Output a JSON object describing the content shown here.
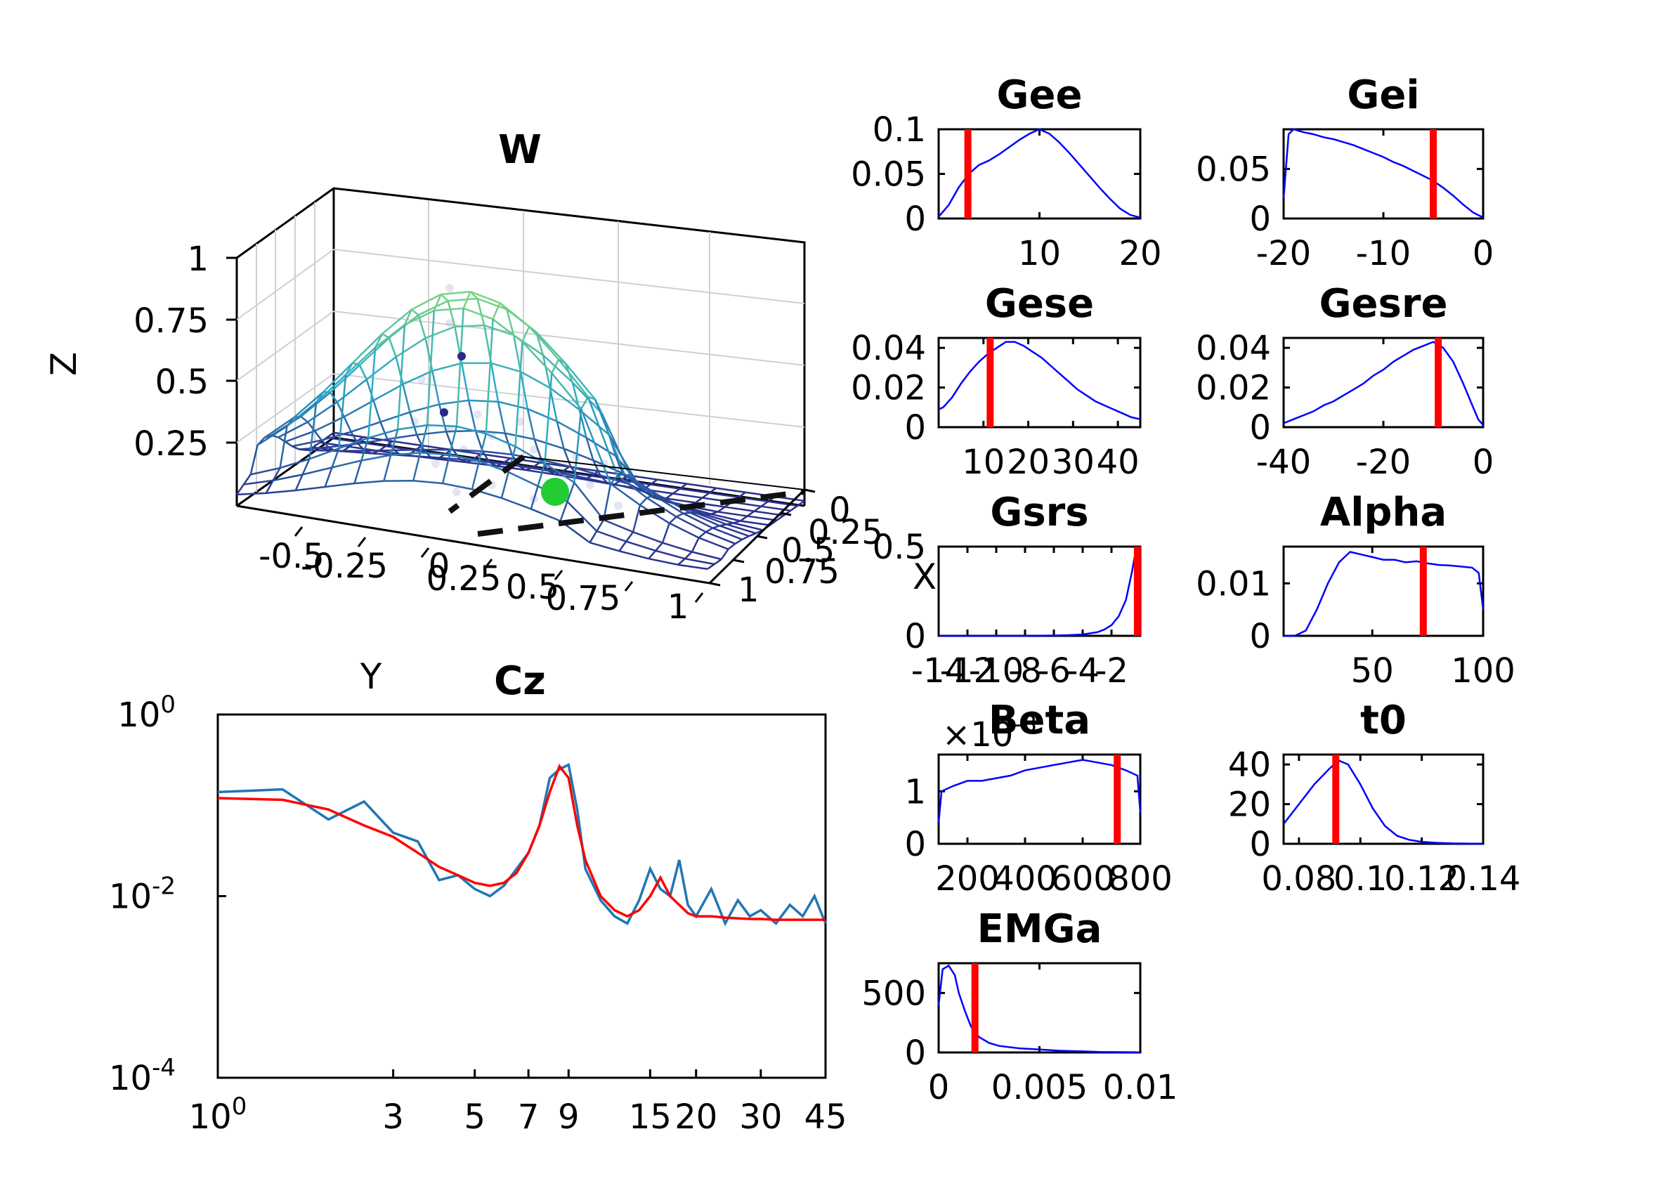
{
  "colors": {
    "spectrum_data": "#1f77b4",
    "spectrum_fit": "#ff0000",
    "hist_line": "#0000ff",
    "marker": "#ff0000",
    "point": "#22cc33",
    "mesh_high": "#7fd67f",
    "mesh_low": "#2a2a8a"
  },
  "chart_data": [
    {
      "id": "w",
      "type": "surface",
      "title": "W",
      "zlabel": "Z",
      "xlabel": "X",
      "ylabel": "Y",
      "z_ticks": [
        "1",
        "0.75",
        "0.5",
        "0.25"
      ],
      "y_ticks": [
        "-0.5",
        "-0.25",
        "0",
        "0.25",
        "0.5",
        "0.75",
        "1"
      ],
      "x_ticks": [
        "0",
        "0.25",
        "0.5",
        "0.75",
        "1"
      ],
      "zlim": [
        0,
        1
      ],
      "peak": {
        "x": 0.45,
        "y": 0.1,
        "z": 0.9
      },
      "highlight_point": {
        "x": 0.8,
        "y": 0.2,
        "z": 0
      }
    },
    {
      "id": "cz",
      "type": "line",
      "title": "Cz",
      "x_scale": "log",
      "y_scale": "log",
      "xlim": [
        1,
        45
      ],
      "ylim": [
        0.0001,
        1
      ],
      "x_ticks": [
        {
          "value": 1,
          "label": "10",
          "exp": "0"
        },
        {
          "value": 3,
          "label": "3"
        },
        {
          "value": 5,
          "label": "5"
        },
        {
          "value": 7,
          "label": "7"
        },
        {
          "value": 9,
          "label": "9"
        },
        {
          "value": 15,
          "label": "15"
        },
        {
          "value": 20,
          "label": "20"
        },
        {
          "value": 30,
          "label": "30"
        },
        {
          "value": 45,
          "label": "45"
        }
      ],
      "y_ticks": [
        {
          "value": 1,
          "label": "10",
          "exp": "0"
        },
        {
          "value": 0.01,
          "label": "10",
          "exp": "-2"
        },
        {
          "value": 0.0001,
          "label": "10",
          "exp": "-4"
        }
      ],
      "series": [
        {
          "role": "data",
          "x": [
            1,
            1.5,
            2,
            2.5,
            3,
            3.5,
            4,
            4.5,
            5,
            5.5,
            6,
            6.5,
            7,
            7.5,
            8,
            8.5,
            9,
            9.5,
            10,
            11,
            12,
            13,
            14,
            15,
            16,
            17,
            18,
            19,
            20,
            22,
            24,
            26,
            28,
            30,
            33,
            36,
            39,
            42,
            45
          ],
          "y": [
            0.14,
            0.15,
            0.07,
            0.11,
            0.05,
            0.04,
            0.015,
            0.017,
            0.012,
            0.01,
            0.013,
            0.02,
            0.03,
            0.06,
            0.2,
            0.25,
            0.28,
            0.09,
            0.02,
            0.009,
            0.006,
            0.005,
            0.009,
            0.02,
            0.012,
            0.01,
            0.025,
            0.008,
            0.006,
            0.012,
            0.005,
            0.009,
            0.006,
            0.007,
            0.005,
            0.008,
            0.006,
            0.01,
            0.005
          ]
        },
        {
          "role": "fit",
          "x": [
            1,
            1.5,
            2,
            2.5,
            3,
            3.5,
            4,
            4.5,
            5,
            5.5,
            6,
            6.5,
            7,
            7.5,
            8,
            8.5,
            9,
            9.5,
            10,
            11,
            12,
            13,
            14,
            15,
            16,
            17,
            18,
            19,
            20,
            22,
            24,
            26,
            28,
            30,
            33,
            36,
            39,
            42,
            45
          ],
          "y": [
            0.12,
            0.115,
            0.09,
            0.06,
            0.045,
            0.03,
            0.021,
            0.017,
            0.014,
            0.013,
            0.014,
            0.018,
            0.03,
            0.06,
            0.14,
            0.27,
            0.2,
            0.06,
            0.025,
            0.01,
            0.007,
            0.006,
            0.007,
            0.01,
            0.016,
            0.01,
            0.008,
            0.0065,
            0.006,
            0.006,
            0.0058,
            0.0057,
            0.0056,
            0.0056,
            0.0055,
            0.0055,
            0.0055,
            0.0055,
            0.0055
          ]
        }
      ]
    },
    {
      "id": "gee",
      "type": "line",
      "title": "Gee",
      "xlim": [
        0,
        20
      ],
      "ylim": [
        0,
        0.1
      ],
      "x_ticks": [
        {
          "v": 10,
          "t": "10"
        },
        {
          "v": 20,
          "t": "20"
        }
      ],
      "y_ticks": [
        {
          "v": 0,
          "t": "0"
        },
        {
          "v": 0.05,
          "t": "0.05"
        },
        {
          "v": 0.1,
          "t": "0.1"
        }
      ],
      "marker": 2.9,
      "x": [
        0,
        1,
        2,
        3,
        4,
        5,
        6,
        7,
        8,
        9,
        10,
        11,
        12,
        13,
        14,
        15,
        16,
        17,
        18,
        19,
        20
      ],
      "y": [
        0.002,
        0.015,
        0.035,
        0.05,
        0.06,
        0.065,
        0.072,
        0.08,
        0.088,
        0.095,
        0.1,
        0.095,
        0.085,
        0.073,
        0.06,
        0.047,
        0.034,
        0.022,
        0.011,
        0.004,
        0.001
      ]
    },
    {
      "id": "gei",
      "type": "line",
      "title": "Gei",
      "xlim": [
        -20,
        0
      ],
      "ylim": [
        0,
        0.09
      ],
      "x_ticks": [
        {
          "v": -20,
          "t": "-20"
        },
        {
          "v": -10,
          "t": "-10"
        },
        {
          "v": 0,
          "t": "0"
        }
      ],
      "y_ticks": [
        {
          "v": 0,
          "t": "0"
        },
        {
          "v": 0.05,
          "t": "0.05"
        }
      ],
      "marker": -5,
      "x": [
        -20,
        -19.5,
        -19,
        -18,
        -17,
        -16,
        -15,
        -14,
        -13,
        -12,
        -11,
        -10,
        -9,
        -8,
        -7,
        -6,
        -5,
        -4,
        -3,
        -2,
        -1,
        0
      ],
      "y": [
        0.02,
        0.085,
        0.09,
        0.087,
        0.085,
        0.082,
        0.08,
        0.077,
        0.074,
        0.07,
        0.066,
        0.062,
        0.057,
        0.053,
        0.048,
        0.043,
        0.038,
        0.031,
        0.023,
        0.014,
        0.006,
        0.001
      ]
    },
    {
      "id": "gese",
      "type": "line",
      "title": "Gese",
      "xlim": [
        0,
        45
      ],
      "ylim": [
        0,
        0.045
      ],
      "x_ticks": [
        {
          "v": 10,
          "t": "10"
        },
        {
          "v": 20,
          "t": "20"
        },
        {
          "v": 30,
          "t": "30"
        },
        {
          "v": 40,
          "t": "40"
        }
      ],
      "y_ticks": [
        {
          "v": 0,
          "t": "0"
        },
        {
          "v": 0.02,
          "t": "0.02"
        },
        {
          "v": 0.04,
          "t": "0.04"
        }
      ],
      "marker": 11.5,
      "x": [
        0,
        1,
        3,
        5,
        7,
        9,
        11,
        13,
        15,
        17,
        19,
        21,
        23,
        25,
        27,
        29,
        31,
        33,
        35,
        37,
        39,
        41,
        43,
        45
      ],
      "y": [
        0.009,
        0.01,
        0.015,
        0.022,
        0.028,
        0.033,
        0.037,
        0.04,
        0.043,
        0.043,
        0.041,
        0.038,
        0.035,
        0.031,
        0.027,
        0.023,
        0.019,
        0.016,
        0.013,
        0.011,
        0.009,
        0.007,
        0.005,
        0.004
      ]
    },
    {
      "id": "gesre",
      "type": "line",
      "title": "Gesre",
      "xlim": [
        -40,
        0
      ],
      "ylim": [
        0,
        0.045
      ],
      "x_ticks": [
        {
          "v": -40,
          "t": "-40"
        },
        {
          "v": -20,
          "t": "-20"
        },
        {
          "v": 0,
          "t": "0"
        }
      ],
      "y_ticks": [
        {
          "v": 0,
          "t": "0"
        },
        {
          "v": 0.02,
          "t": "0.02"
        },
        {
          "v": 0.04,
          "t": "0.04"
        }
      ],
      "marker": -9,
      "x": [
        -40,
        -38,
        -36,
        -34,
        -32,
        -30,
        -28,
        -26,
        -24,
        -22,
        -20,
        -18,
        -16,
        -14,
        -12,
        -10,
        -8,
        -6,
        -4,
        -2,
        -1,
        0
      ],
      "y": [
        0.002,
        0.004,
        0.006,
        0.008,
        0.011,
        0.013,
        0.016,
        0.019,
        0.022,
        0.026,
        0.029,
        0.033,
        0.036,
        0.039,
        0.041,
        0.043,
        0.04,
        0.033,
        0.022,
        0.01,
        0.004,
        0.001
      ]
    },
    {
      "id": "gsrs",
      "type": "line",
      "title": "Gsrs",
      "xlim": [
        -14,
        0
      ],
      "ylim": [
        0,
        0.5
      ],
      "x_ticks": [
        {
          "v": -14,
          "t": "-14"
        },
        {
          "v": -12,
          "t": "-12"
        },
        {
          "v": -10,
          "t": "-10"
        },
        {
          "v": -8,
          "t": "-8"
        },
        {
          "v": -6,
          "t": "-6"
        },
        {
          "v": -4,
          "t": "-4"
        },
        {
          "v": -2,
          "t": "-2"
        }
      ],
      "y_ticks": [
        {
          "v": 0,
          "t": "0"
        },
        {
          "v": 0.5,
          "t": "0.5"
        }
      ],
      "marker": -0.2,
      "x": [
        -14,
        -10,
        -8,
        -6,
        -5,
        -4,
        -3,
        -2.5,
        -2,
        -1.5,
        -1,
        -0.6,
        -0.3,
        0
      ],
      "y": [
        0,
        0,
        0,
        0.002,
        0.004,
        0.008,
        0.02,
        0.035,
        0.06,
        0.11,
        0.2,
        0.35,
        0.48,
        0.5
      ]
    },
    {
      "id": "alpha",
      "type": "line",
      "title": "Alpha",
      "xlim": [
        10,
        100
      ],
      "ylim": [
        0,
        0.017
      ],
      "x_ticks": [
        {
          "v": 50,
          "t": "50"
        },
        {
          "v": 100,
          "t": "100"
        }
      ],
      "y_ticks": [
        {
          "v": 0,
          "t": "0"
        },
        {
          "v": 0.01,
          "t": "0.01"
        }
      ],
      "marker": 73,
      "x": [
        10,
        15,
        20,
        25,
        30,
        35,
        40,
        45,
        50,
        55,
        60,
        65,
        70,
        75,
        80,
        85,
        90,
        95,
        98,
        100
      ],
      "y": [
        0,
        0,
        0.001,
        0.005,
        0.01,
        0.014,
        0.016,
        0.0155,
        0.015,
        0.0145,
        0.0145,
        0.014,
        0.0142,
        0.0138,
        0.0135,
        0.0134,
        0.0132,
        0.013,
        0.012,
        0.005
      ]
    },
    {
      "id": "beta",
      "type": "line",
      "title": "Beta",
      "multiplier_label": "×10",
      "multiplier_exp": "-3",
      "xlim": [
        100,
        800
      ],
      "ylim": [
        0,
        0.0017
      ],
      "x_ticks": [
        {
          "v": 200,
          "t": "200"
        },
        {
          "v": 400,
          "t": "400"
        },
        {
          "v": 600,
          "t": "600"
        },
        {
          "v": 800,
          "t": "800"
        }
      ],
      "y_ticks": [
        {
          "v": 0,
          "t": "0"
        },
        {
          "v": 0.001,
          "t": "1"
        }
      ],
      "marker": 720,
      "x": [
        100,
        110,
        150,
        200,
        250,
        300,
        350,
        400,
        450,
        500,
        550,
        600,
        650,
        700,
        750,
        790,
        800
      ],
      "y": [
        0.0004,
        0.001,
        0.0011,
        0.0012,
        0.0012,
        0.00125,
        0.0013,
        0.0014,
        0.00145,
        0.0015,
        0.00155,
        0.0016,
        0.00155,
        0.0015,
        0.0014,
        0.0013,
        0.0006
      ]
    },
    {
      "id": "t0",
      "type": "line",
      "title": "t0",
      "xlim": [
        0.075,
        0.14
      ],
      "ylim": [
        0,
        45
      ],
      "x_ticks": [
        {
          "v": 0.08,
          "t": "0.08"
        },
        {
          "v": 0.1,
          "t": "0.1"
        },
        {
          "v": 0.12,
          "t": "0.12"
        },
        {
          "v": 0.14,
          "t": "0.14"
        }
      ],
      "y_ticks": [
        {
          "v": 0,
          "t": "0"
        },
        {
          "v": 20,
          "t": "20"
        },
        {
          "v": 40,
          "t": "40"
        }
      ],
      "marker": 0.092,
      "x": [
        0.075,
        0.08,
        0.085,
        0.09,
        0.093,
        0.096,
        0.1,
        0.104,
        0.108,
        0.112,
        0.116,
        0.12,
        0.125,
        0.13,
        0.14
      ],
      "y": [
        10,
        20,
        30,
        38,
        42,
        40,
        30,
        18,
        9,
        4,
        2,
        1,
        0.5,
        0.2,
        0
      ]
    },
    {
      "id": "emga",
      "type": "line",
      "title": "EMGa",
      "xlim": [
        0,
        0.01
      ],
      "ylim": [
        0,
        750
      ],
      "x_ticks": [
        {
          "v": 0,
          "t": "0"
        },
        {
          "v": 0.005,
          "t": "0.005"
        },
        {
          "v": 0.01,
          "t": "0.01"
        }
      ],
      "y_ticks": [
        {
          "v": 0,
          "t": "0"
        },
        {
          "v": 500,
          "t": "500"
        }
      ],
      "marker": 0.0018,
      "x": [
        0,
        0.0002,
        0.0005,
        0.0008,
        0.001,
        0.0013,
        0.0016,
        0.002,
        0.0025,
        0.003,
        0.004,
        0.005,
        0.006,
        0.007,
        0.008,
        0.01
      ],
      "y": [
        400,
        700,
        730,
        650,
        500,
        350,
        220,
        130,
        80,
        55,
        35,
        25,
        15,
        10,
        5,
        2
      ]
    }
  ]
}
